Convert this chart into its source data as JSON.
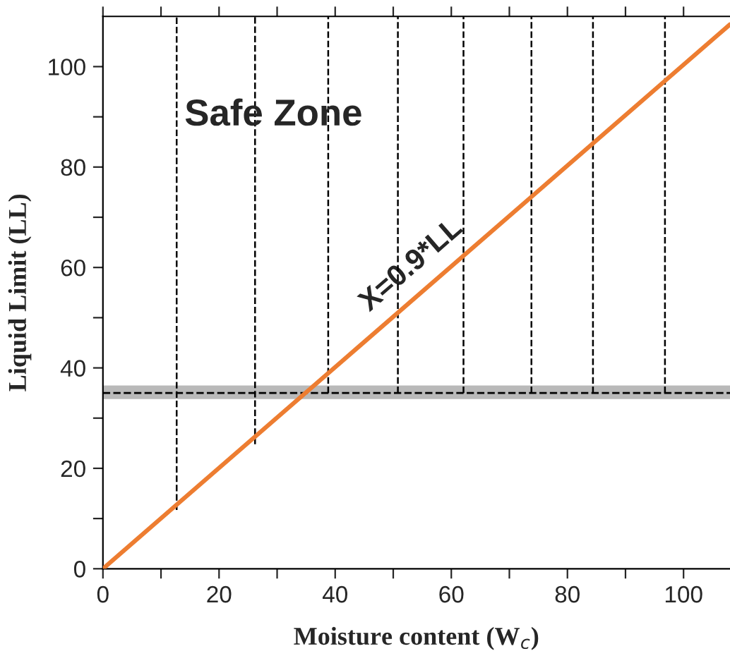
{
  "chart_data": {
    "type": "line",
    "xlabel": "Moisture content (W$_{c}$)",
    "ylabel": "Liquid Limit (LL)",
    "xlim": [
      0,
      108
    ],
    "ylim": [
      0,
      110
    ],
    "xticks": [
      0,
      {
        "value": 10,
        "label": null
      },
      20,
      {
        "value": 30,
        "label": null
      },
      40,
      {
        "value": 50,
        "label": null
      },
      60,
      {
        "value": 70,
        "label": null
      },
      80,
      {
        "value": 90,
        "label": null
      },
      100
    ],
    "yticks": [
      0,
      {
        "value": 10,
        "label": null
      },
      20,
      {
        "value": 30,
        "label": null
      },
      40,
      {
        "value": 50,
        "label": null
      },
      60,
      {
        "value": 70,
        "label": null
      },
      80,
      {
        "value": 90,
        "label": null
      },
      100
    ],
    "grid": false,
    "legend": false,
    "marker": "none",
    "series": [
      {
        "name": "X=0.9*LL",
        "color": "#ed7d31",
        "line_style": "solid",
        "x": [
          0,
          108
        ],
        "values": [
          0,
          108.4
        ]
      },
      {
        "color": "#000000",
        "line_style": "dashed",
        "x": [
          12.7,
          12.7
        ],
        "values": [
          11.7,
          110
        ]
      },
      {
        "color": "#000000",
        "line_style": "dashed",
        "x": [
          26.2,
          26.2
        ],
        "values": [
          24.8,
          110
        ]
      },
      {
        "color": "#000000",
        "line_style": "dashed",
        "x": [
          38.8,
          38.8
        ],
        "values": [
          35,
          110
        ]
      },
      {
        "color": "#000000",
        "line_style": "dashed",
        "x": [
          50.8,
          50.8
        ],
        "values": [
          35,
          110
        ]
      },
      {
        "color": "#000000",
        "line_style": "dashed",
        "x": [
          62.1,
          62.1
        ],
        "values": [
          35,
          110
        ]
      },
      {
        "color": "#000000",
        "line_style": "dashed",
        "x": [
          73.8,
          73.8
        ],
        "values": [
          35,
          110
        ]
      },
      {
        "color": "#000000",
        "line_style": "dashed",
        "x": [
          84.4,
          84.4
        ],
        "values": [
          35,
          110
        ]
      },
      {
        "color": "#000000",
        "line_style": "dashed",
        "x": [
          96.8,
          96.8
        ],
        "values": [
          35,
          110
        ]
      }
    ],
    "ref_lines": [
      {
        "axis": "y",
        "value": 35,
        "color": "#000000",
        "line_style": "dashed"
      }
    ],
    "bands": [
      {
        "axis": "y",
        "from": 33.8,
        "to": 36.5,
        "color": "#808080"
      }
    ],
    "annotations": [
      "Safe Zone"
    ]
  }
}
